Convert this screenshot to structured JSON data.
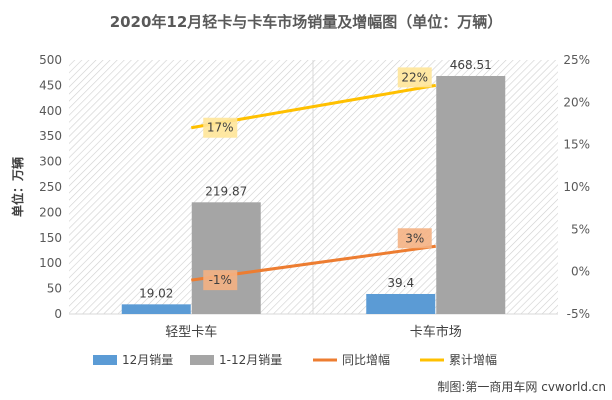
{
  "chart_data": {
    "type": "bar",
    "title": "2020年12月轻卡与卡车市场销量及增幅图（单位：万辆）",
    "ylabel": "单位：万辆",
    "categories": [
      "轻型卡车",
      "卡车市场"
    ],
    "ylim": [
      0,
      500
    ],
    "yticks": [
      "0",
      "50",
      "100",
      "150",
      "200",
      "250",
      "300",
      "350",
      "400",
      "450",
      "500"
    ],
    "y2lim": [
      -5,
      25
    ],
    "y2ticks": [
      "-5%",
      "0%",
      "5%",
      "10%",
      "15%",
      "20%",
      "25%"
    ],
    "series": [
      {
        "name": "12月销量",
        "kind": "bar",
        "axis": "left",
        "color": "#5B9BD5",
        "values": [
          19.02,
          39.4
        ],
        "labels": [
          "19.02",
          "39.4"
        ]
      },
      {
        "name": "1-12月销量",
        "kind": "bar",
        "axis": "left",
        "color": "#A5A5A5",
        "values": [
          219.87,
          468.51
        ],
        "labels": [
          "219.87",
          "468.51"
        ]
      },
      {
        "name": "同比增幅",
        "kind": "line",
        "axis": "right",
        "color": "#ED7D31",
        "values": [
          -1,
          3
        ],
        "labels": [
          "-1%",
          "3%"
        ]
      },
      {
        "name": "累计增幅",
        "kind": "line",
        "axis": "right",
        "color": "#FFC000",
        "values": [
          17,
          22
        ],
        "labels": [
          "17%",
          "22%"
        ]
      }
    ],
    "legend_position": "bottom",
    "grid": false
  },
  "credit": "制图:第一商用车网 cvworld.cn"
}
